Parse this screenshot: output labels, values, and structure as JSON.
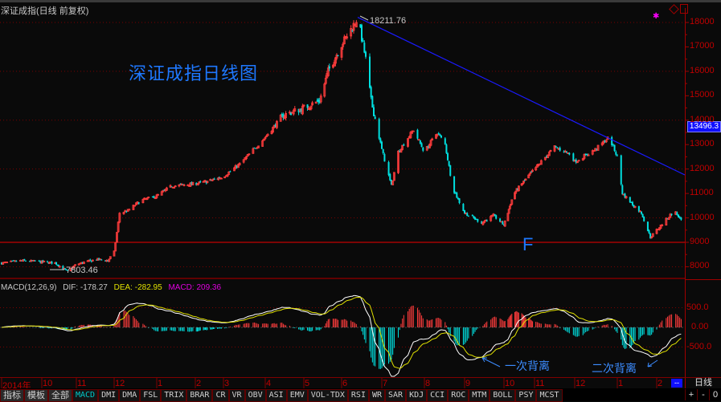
{
  "window": {
    "title": "深证成指(日线 前复权)"
  },
  "annotations": {
    "chart_title": "深证成指日线图",
    "f_label": "F",
    "first_divergence": "一次背离",
    "second_divergence": "二次背离",
    "high_label": "18211.76",
    "low_label": "7803.46"
  },
  "current_price": "13496.3",
  "macd_header": {
    "name": "MACD(12,26,9)",
    "dif": "DIF: -178.27",
    "dea": "DEA: -282.95",
    "macd": "MACD: 209.36"
  },
  "colors": {
    "up": "#ff3c3c",
    "down": "#00e0e0",
    "trendline": "#1a1aff",
    "dif": "#ffffff",
    "dea": "#e0e000",
    "axis": "#c00000",
    "annotation": "#1e78ff"
  },
  "price_axis": [
    "18000",
    "17000",
    "16000",
    "15000",
    "14000",
    "13000",
    "12000",
    "11000",
    "10000",
    "9000",
    "8000"
  ],
  "macd_axis": [
    "500.0",
    "0.00",
    "-500.0"
  ],
  "date_axis": [
    "2014年",
    "10",
    "11",
    "12",
    "1",
    "2",
    "3",
    "4",
    "5",
    "6",
    "7",
    "8",
    "9",
    "10",
    "11",
    "12",
    "1",
    "2"
  ],
  "period": "日线",
  "pager": "--",
  "controls": [
    "+",
    "-",
    "0"
  ],
  "tabs": [
    "指标",
    "模板",
    "全部",
    "MACD",
    "DMI",
    "DMA",
    "FSL",
    "TRIX",
    "BRAR",
    "CR",
    "VR",
    "OBV",
    "ASI",
    "EMV",
    "VOL-TDX",
    "RSI",
    "WR",
    "SAR",
    "KDJ",
    "CCI",
    "ROC",
    "MTM",
    "BOLL",
    "PSY",
    "MCST"
  ],
  "active_tab": "MACD",
  "chart_data": {
    "type": "candlestick",
    "price_range": [
      7500,
      18500
    ],
    "support_level": 9000,
    "trendline": {
      "from": [
        "2015-06-13",
        18211.76
      ],
      "slope": "down"
    },
    "close_keypoints": [
      [
        "2014-09-01",
        8150
      ],
      [
        "2014-09-17",
        8250
      ],
      [
        "2014-10-01",
        8200
      ],
      [
        "2014-10-13",
        8150
      ],
      [
        "2014-10-24",
        7803
      ],
      [
        "2014-11-01",
        8100
      ],
      [
        "2014-11-17",
        8300
      ],
      [
        "2014-11-26",
        8250
      ],
      [
        "2014-12-01",
        8600
      ],
      [
        "2014-12-05",
        10200
      ],
      [
        "2014-12-11",
        10300
      ],
      [
        "2014-12-20",
        10700
      ],
      [
        "2015-01-01",
        10900
      ],
      [
        "2015-01-13",
        11300
      ],
      [
        "2015-02-01",
        11400
      ],
      [
        "2015-02-14",
        11500
      ],
      [
        "2015-03-01",
        11700
      ],
      [
        "2015-03-13",
        12200
      ],
      [
        "2015-04-01",
        13300
      ],
      [
        "2015-04-15",
        14200
      ],
      [
        "2015-05-01",
        14500
      ],
      [
        "2015-05-14",
        14800
      ],
      [
        "2015-05-21",
        16000
      ],
      [
        "2015-06-01",
        17100
      ],
      [
        "2015-06-09",
        17800
      ],
      [
        "2015-06-13",
        18211
      ],
      [
        "2015-06-19",
        16500
      ],
      [
        "2015-06-23",
        14800
      ],
      [
        "2015-07-01",
        12800
      ],
      [
        "2015-07-08",
        11300
      ],
      [
        "2015-07-13",
        12700
      ],
      [
        "2015-07-24",
        13600
      ],
      [
        "2015-08-01",
        12700
      ],
      [
        "2015-08-11",
        13500
      ],
      [
        "2015-08-17",
        13000
      ],
      [
        "2015-08-23",
        11200
      ],
      [
        "2015-09-01",
        10200
      ],
      [
        "2015-09-14",
        9800
      ],
      [
        "2015-09-23",
        10100
      ],
      [
        "2015-10-01",
        9700
      ],
      [
        "2015-10-11",
        11000
      ],
      [
        "2015-11-01",
        12000
      ],
      [
        "2015-11-16",
        12900
      ],
      [
        "2015-11-28",
        12600
      ],
      [
        "2015-12-01",
        12300
      ],
      [
        "2015-12-16",
        12800
      ],
      [
        "2015-12-26",
        13300
      ],
      [
        "2016-01-01",
        12500
      ],
      [
        "2016-01-05",
        11000
      ],
      [
        "2016-01-14",
        10500
      ],
      [
        "2016-01-20",
        10200
      ],
      [
        "2016-01-27",
        9200
      ],
      [
        "2016-02-01",
        9500
      ],
      [
        "2016-02-14",
        10300
      ],
      [
        "2016-02-21",
        9700
      ]
    ]
  }
}
